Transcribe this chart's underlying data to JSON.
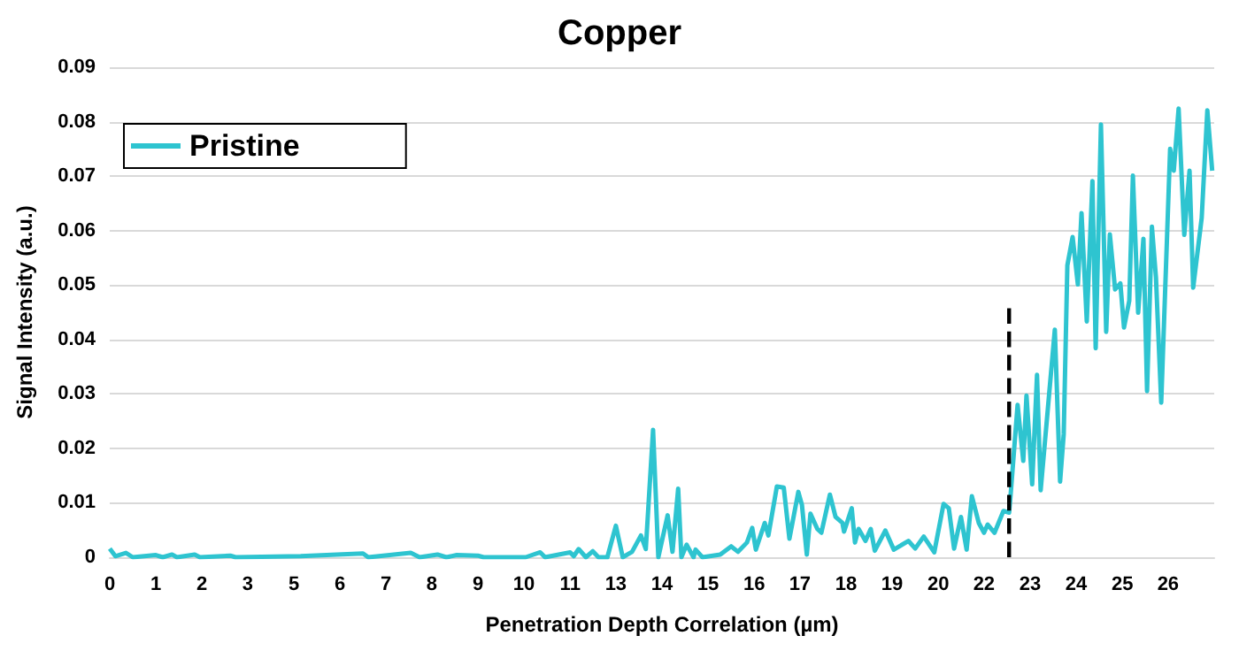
{
  "chart_data": {
    "type": "line",
    "title": "Copper",
    "xlabel": "Penetration Depth Correlation (µm)",
    "ylabel": "Signal Intensity (a.u.)",
    "xlim": [
      0,
      27.3
    ],
    "xticks": [
      0,
      {
        "value": 1.14,
        "label": "1"
      },
      {
        "value": 2.28,
        "label": "2"
      },
      {
        "value": 3.41,
        "label": "3"
      },
      {
        "value": 4.55,
        "label": "5"
      },
      {
        "value": 5.69,
        "label": "6"
      },
      {
        "value": 6.83,
        "label": "7"
      },
      {
        "value": 7.96,
        "label": "8"
      },
      {
        "value": 9.1,
        "label": "9"
      },
      {
        "value": 10.24,
        "label": "10"
      },
      {
        "value": 11.38,
        "label": "11"
      },
      {
        "value": 12.51,
        "label": "13"
      },
      {
        "value": 13.65,
        "label": "14"
      },
      {
        "value": 14.79,
        "label": "15"
      },
      {
        "value": 15.93,
        "label": "16"
      },
      {
        "value": 17.06,
        "label": "17"
      },
      {
        "value": 18.2,
        "label": "18"
      },
      {
        "value": 19.34,
        "label": "19"
      },
      {
        "value": 20.48,
        "label": "20"
      },
      {
        "value": 21.61,
        "label": "22"
      },
      {
        "value": 22.75,
        "label": "23"
      },
      {
        "value": 23.89,
        "label": "24"
      },
      {
        "value": 25.03,
        "label": "25"
      },
      {
        "value": 26.16,
        "label": "26"
      }
    ],
    "ylim": [
      0,
      0.09
    ],
    "yticks": [
      0,
      0.01,
      0.02,
      0.03,
      0.04,
      0.05,
      0.06,
      0.07,
      0.08,
      0.09
    ],
    "grid": "y",
    "legend": "top left",
    "marker": "none",
    "series": [
      {
        "name": "Pristine",
        "color": "#2ec4d0",
        "line_style": "solid",
        "x": [
          0,
          0.14,
          0.4,
          0.57,
          1.14,
          1.31,
          1.54,
          1.66,
          2.1,
          2.23,
          2.98,
          3.11,
          4.72,
          6.26,
          6.39,
          6.92,
          7.44,
          7.66,
          8.1,
          8.32,
          8.58,
          9.1,
          9.24,
          10.28,
          10.64,
          10.76,
          11.38,
          11.47,
          11.59,
          11.77,
          11.94,
          12.08,
          12.3,
          12.51,
          12.68,
          12.91,
          13.13,
          13.25,
          13.43,
          13.56,
          13.79,
          13.91,
          14.05,
          14.13,
          14.26,
          14.43,
          14.48,
          14.65,
          15.09,
          15.36,
          15.53,
          15.75,
          15.88,
          15.97,
          16.19,
          16.28,
          16.49,
          16.66,
          16.8,
          17.02,
          17.11,
          17.23,
          17.32,
          17.49,
          17.59,
          17.8,
          17.94,
          18.11,
          18.15,
          18.34,
          18.42,
          18.51,
          18.68,
          18.81,
          18.91,
          19.17,
          19.38,
          19.74,
          19.91,
          20.12,
          20.38,
          20.61,
          20.74,
          20.87,
          21.04,
          21.18,
          21.31,
          21.48,
          21.61,
          21.7,
          21.87,
          22.09,
          22.23,
          22.27,
          22.44,
          22.58,
          22.66,
          22.8,
          22.92,
          23.01,
          23.36,
          23.49,
          23.58,
          23.67,
          23.8,
          23.93,
          24.02,
          24.15,
          24.29,
          24.37,
          24.5,
          24.63,
          24.72,
          24.85,
          24.98,
          25.07,
          25.2,
          25.29,
          25.42,
          25.55,
          25.64,
          25.76,
          25.86,
          25.99,
          26.21,
          26.3,
          26.42,
          26.56,
          26.69,
          26.78,
          26.99,
          27.13,
          27.25
        ],
        "values": [
          0.0016,
          0.0002,
          0.0008,
          0,
          0.0004,
          0,
          0.0005,
          0,
          0.0005,
          0,
          0.0003,
          0,
          0.0002,
          0.0007,
          0,
          0.0004,
          0.0008,
          0,
          0.0005,
          0,
          0.0004,
          0.0003,
          0,
          0,
          0.0009,
          0,
          0.0009,
          0.0002,
          0.0015,
          0,
          0.0011,
          0,
          0,
          0.0058,
          0,
          0.001,
          0.004,
          0.0015,
          0.0234,
          0,
          0.0077,
          0.001,
          0.0126,
          0,
          0.0023,
          0,
          0.0014,
          0,
          0.0005,
          0.002,
          0.001,
          0.0027,
          0.0054,
          0.0014,
          0.0063,
          0.004,
          0.013,
          0.0128,
          0.0034,
          0.012,
          0.0096,
          0.0005,
          0.008,
          0.0052,
          0.0045,
          0.0115,
          0.0074,
          0.0063,
          0.0047,
          0.009,
          0.0027,
          0.0052,
          0.003,
          0.0052,
          0.0012,
          0.0049,
          0.0014,
          0.003,
          0.0016,
          0.0038,
          0.0009,
          0.0098,
          0.009,
          0.0016,
          0.0074,
          0.0014,
          0.0112,
          0.0063,
          0.0045,
          0.006,
          0.0045,
          0.0085,
          0.0082,
          0.0117,
          0.028,
          0.0177,
          0.0297,
          0.0134,
          0.0335,
          0.0123,
          0.0418,
          0.0139,
          0.0226,
          0.0536,
          0.0588,
          0.0501,
          0.0632,
          0.0433,
          0.0691,
          0.0384,
          0.0795,
          0.0414,
          0.0593,
          0.0492,
          0.0503,
          0.0422,
          0.0471,
          0.0701,
          0.0449,
          0.0585,
          0.0305,
          0.0607,
          0.0514,
          0.0284,
          0.075,
          0.071,
          0.0824,
          0.0592,
          0.071,
          0.0495,
          0.0623,
          0.0821,
          0.071
        ]
      },
      {
        "color": "#000000",
        "line_style": "dashed",
        "x": [
          22.23,
          22.23
        ],
        "values": [
          0,
          0.046
        ]
      }
    ]
  }
}
